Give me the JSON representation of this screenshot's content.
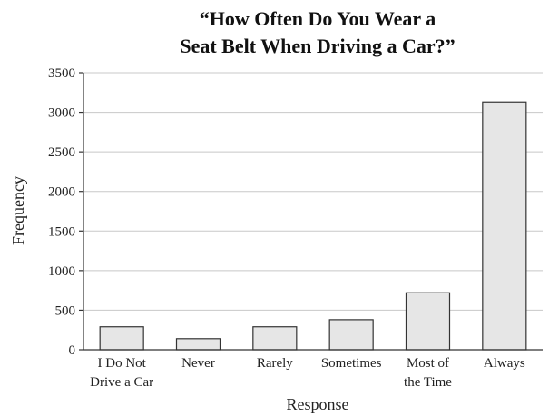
{
  "chart_data": {
    "type": "bar",
    "title": [
      "“How Often Do You Wear a",
      "Seat Belt When Driving a Car?”"
    ],
    "xlabel": "Response",
    "ylabel": "Frequency",
    "categories": [
      [
        "I Do Not",
        "Drive a Car"
      ],
      [
        "Never"
      ],
      [
        "Rarely"
      ],
      [
        "Sometimes"
      ],
      [
        "Most of",
        "the Time"
      ],
      [
        "Always"
      ]
    ],
    "values": [
      290,
      140,
      290,
      380,
      720,
      3130
    ],
    "ylim": [
      0,
      3500
    ],
    "yticks": [
      0,
      500,
      1000,
      1500,
      2000,
      2500,
      3000,
      3500
    ],
    "grid": true,
    "colors": {
      "bar_fill": "#e6e6e6",
      "bar_stroke": "#333333",
      "grid": "#c8c8c8"
    }
  }
}
